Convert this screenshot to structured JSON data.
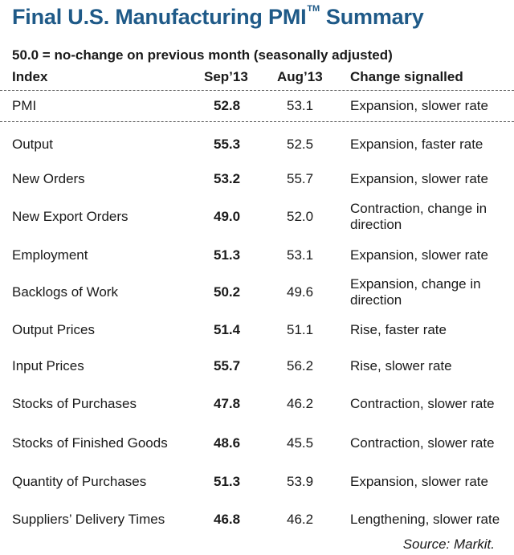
{
  "title": {
    "text": "Final U.S. Manufacturing PMI",
    "trademark": "TM",
    "suffix": "Summary",
    "color": "#1f5a88"
  },
  "subtitle": "50.0 = no-change on previous month (seasonally adjusted)",
  "columns": {
    "index": "Index",
    "sep13": "Sep’13",
    "aug13": "Aug’13",
    "change": "Change signalled"
  },
  "rows": [
    {
      "index": "PMI",
      "sep13": "52.8",
      "aug13": "53.1",
      "change": "Expansion, slower rate"
    },
    {
      "index": "Output",
      "sep13": "55.3",
      "aug13": "52.5",
      "change": "Expansion, faster rate"
    },
    {
      "index": "New Orders",
      "sep13": "53.2",
      "aug13": "55.7",
      "change": "Expansion, slower rate"
    },
    {
      "index": "New Export Orders",
      "sep13": "49.0",
      "aug13": "52.0",
      "change": "Contraction, change in direction"
    },
    {
      "index": "Employment",
      "sep13": "51.3",
      "aug13": "53.1",
      "change": "Expansion, slower rate"
    },
    {
      "index": "Backlogs of Work",
      "sep13": "50.2",
      "aug13": "49.6",
      "change": "Expansion, change in direction"
    },
    {
      "index": "Output Prices",
      "sep13": "51.4",
      "aug13": "51.1",
      "change": "Rise, faster rate"
    },
    {
      "index": "Input Prices",
      "sep13": "55.7",
      "aug13": "56.2",
      "change": "Rise, slower rate"
    },
    {
      "index": "Stocks of Purchases",
      "sep13": "47.8",
      "aug13": "46.2",
      "change": "Contraction, slower rate"
    },
    {
      "index": "Stocks of Finished Goods",
      "sep13": "48.6",
      "aug13": "45.5",
      "change": "Contraction, slower rate"
    },
    {
      "index": "Quantity of Purchases",
      "sep13": "51.3",
      "aug13": "53.9",
      "change": "Expansion, slower rate"
    },
    {
      "index": "Suppliers’ Delivery Times",
      "sep13": "46.8",
      "aug13": "46.2",
      "change": "Lengthening, slower rate"
    }
  ],
  "source": "Source: Markit."
}
